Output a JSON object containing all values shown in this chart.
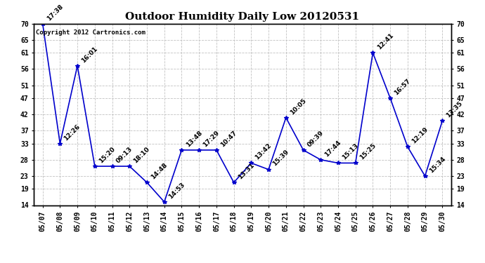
{
  "title": "Outdoor Humidity Daily Low 20120531",
  "copyright": "Copyright 2012 Cartronics.com",
  "dates": [
    "05/07",
    "05/08",
    "05/09",
    "05/10",
    "05/11",
    "05/12",
    "05/13",
    "05/14",
    "05/15",
    "05/16",
    "05/17",
    "05/18",
    "05/19",
    "05/20",
    "05/21",
    "05/22",
    "05/23",
    "05/24",
    "05/25",
    "05/26",
    "05/27",
    "05/28",
    "05/29",
    "05/30"
  ],
  "values": [
    70,
    33,
    57,
    26,
    26,
    26,
    21,
    15,
    31,
    31,
    31,
    21,
    27,
    25,
    41,
    31,
    28,
    27,
    27,
    61,
    47,
    32,
    23,
    40
  ],
  "time_labels": [
    "17:38",
    "12:26",
    "16:01",
    "15:20",
    "09:13",
    "18:10",
    "14:48",
    "14:53",
    "13:48",
    "17:29",
    "10:47",
    "13:31",
    "13:42",
    "15:39",
    "10:05",
    "09:39",
    "17:44",
    "15:13",
    "15:25",
    "12:41",
    "16:57",
    "12:19",
    "15:34",
    "13:35"
  ],
  "ylim": [
    14,
    70
  ],
  "yticks": [
    14,
    19,
    23,
    28,
    33,
    37,
    42,
    47,
    51,
    56,
    61,
    65,
    70
  ],
  "line_color": "#0000cc",
  "marker_color": "#0000cc",
  "bg_color": "#ffffff",
  "grid_color": "#bbbbbb",
  "title_fontsize": 11,
  "label_fontsize": 6.5,
  "tick_fontsize": 7,
  "copyright_fontsize": 6.5
}
